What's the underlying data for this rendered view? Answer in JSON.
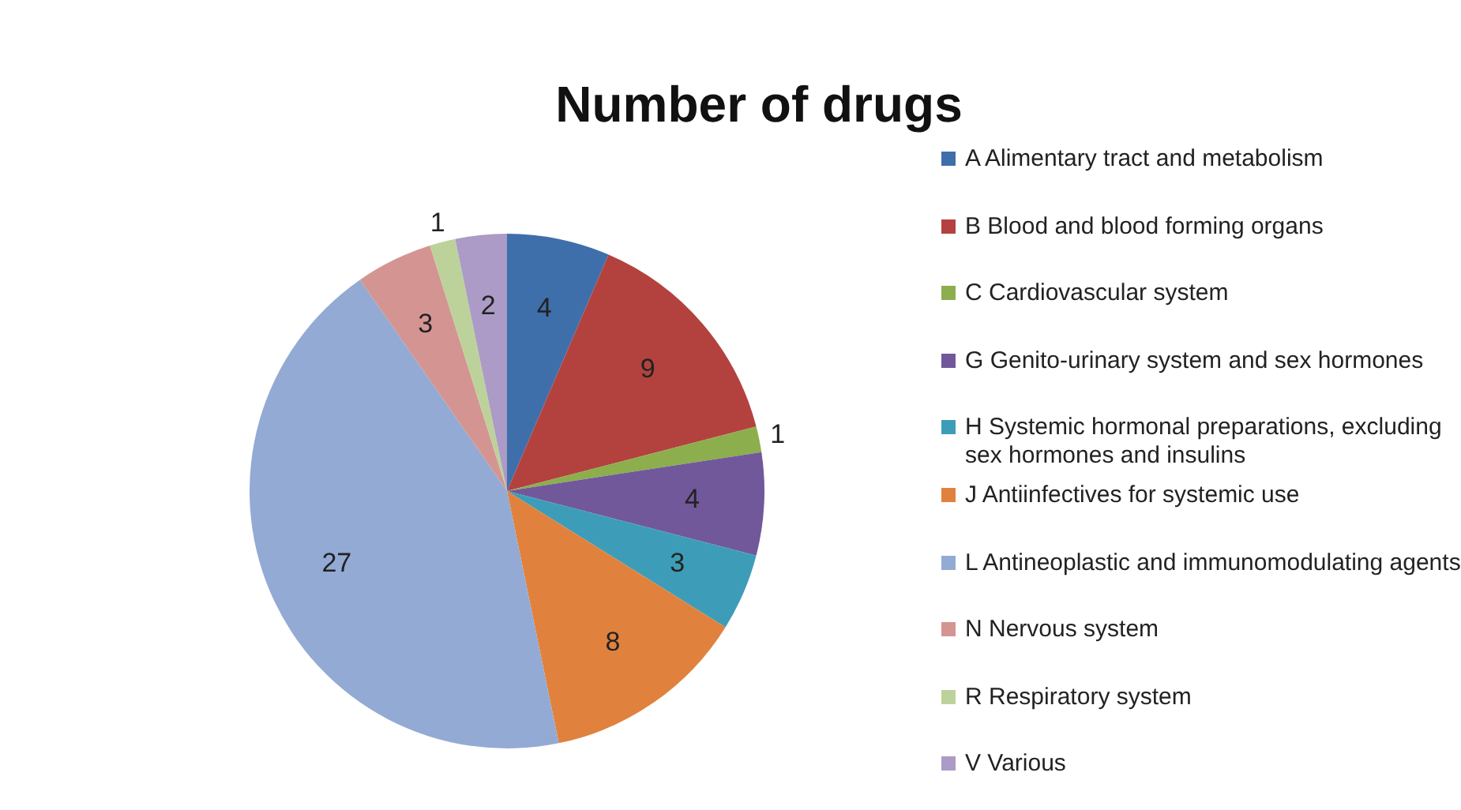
{
  "chart_data": {
    "type": "pie",
    "title": "Number of drugs",
    "categories": [
      "A Alimentary tract and metabolism",
      "B Blood and blood forming organs",
      "C Cardiovascular system",
      "G Genito-urinary system and sex hormones",
      "H Systemic hormonal preparations, excluding sex hormones and insulins",
      "J Antiinfectives for systemic use",
      "L Antineoplastic and immunomodulating agents",
      "N Nervous system",
      "R Respiratory system",
      "V Various"
    ],
    "values": [
      4,
      9,
      1,
      4,
      3,
      8,
      27,
      3,
      1,
      2
    ],
    "colors": [
      "#3f6fab",
      "#b3423f",
      "#8cae4c",
      "#71589a",
      "#3d9db8",
      "#e0823d",
      "#93aad4",
      "#d49592",
      "#bcd29a",
      "#ab9bc6"
    ],
    "data_labels": true,
    "legend": "right"
  }
}
